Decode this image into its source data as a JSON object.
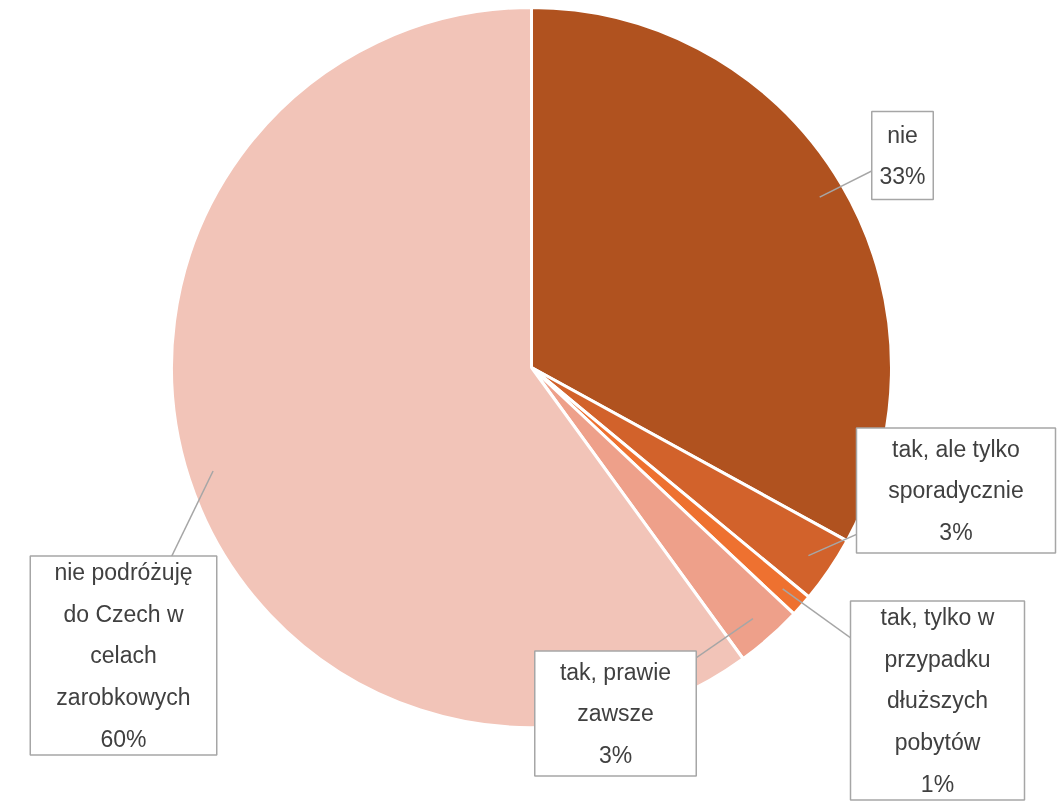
{
  "chart_data": {
    "type": "pie",
    "categories": [
      "nie",
      "tak, ale tylko sporadycznie",
      "tak, tylko w przypadku dłuższych pobytów",
      "tak, prawie zawsze",
      "nie podróżuję do Czech w celach zarobkowych"
    ],
    "values": [
      33,
      3,
      1,
      3,
      60
    ],
    "colors": [
      "#b0521f",
      "#d2622b",
      "#ee7130",
      "#eea08a",
      "#f2c4b8"
    ],
    "value_labels": [
      "33%",
      "3%",
      "1%",
      "3%",
      "60%"
    ]
  }
}
